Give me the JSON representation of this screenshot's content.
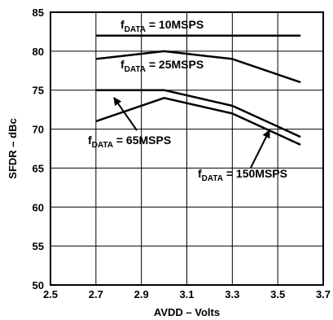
{
  "chart_data": {
    "type": "line",
    "title": "",
    "xlabel": "AVDD – Volts",
    "ylabel": "SFDR – dBc",
    "xlim": [
      2.5,
      3.7
    ],
    "ylim": [
      50,
      85
    ],
    "xticks": [
      "2.5",
      "2.7",
      "2.9",
      "3.1",
      "3.3",
      "3.5",
      "3.7"
    ],
    "yticks": [
      "50",
      "55",
      "60",
      "65",
      "70",
      "75",
      "80",
      "85"
    ],
    "grid": true,
    "series": [
      {
        "name": "f_DATA = 10MSPS",
        "x": [
          2.7,
          3.0,
          3.3,
          3.6
        ],
        "y": [
          82,
          82,
          82,
          82
        ]
      },
      {
        "name": "f_DATA = 25MSPS",
        "x": [
          2.7,
          3.0,
          3.3,
          3.6
        ],
        "y": [
          79,
          80,
          79,
          76
        ]
      },
      {
        "name": "f_DATA = 65MSPS",
        "x": [
          2.7,
          3.0,
          3.3,
          3.6
        ],
        "y": [
          75,
          75,
          73,
          69
        ]
      },
      {
        "name": "f_DATA = 150MSPS",
        "x": [
          2.7,
          3.0,
          3.3,
          3.6
        ],
        "y": [
          71,
          74,
          72,
          68
        ]
      }
    ],
    "annotations": [
      {
        "prefix": "f",
        "sub": "DATA",
        "suffix": " = 10MSPS"
      },
      {
        "prefix": "f",
        "sub": "DATA",
        "suffix": " = 25MSPS"
      },
      {
        "prefix": "f",
        "sub": "DATA",
        "suffix": " = 65MSPS"
      },
      {
        "prefix": "f",
        "sub": "DATA",
        "suffix": " = 150MSPS"
      }
    ]
  }
}
